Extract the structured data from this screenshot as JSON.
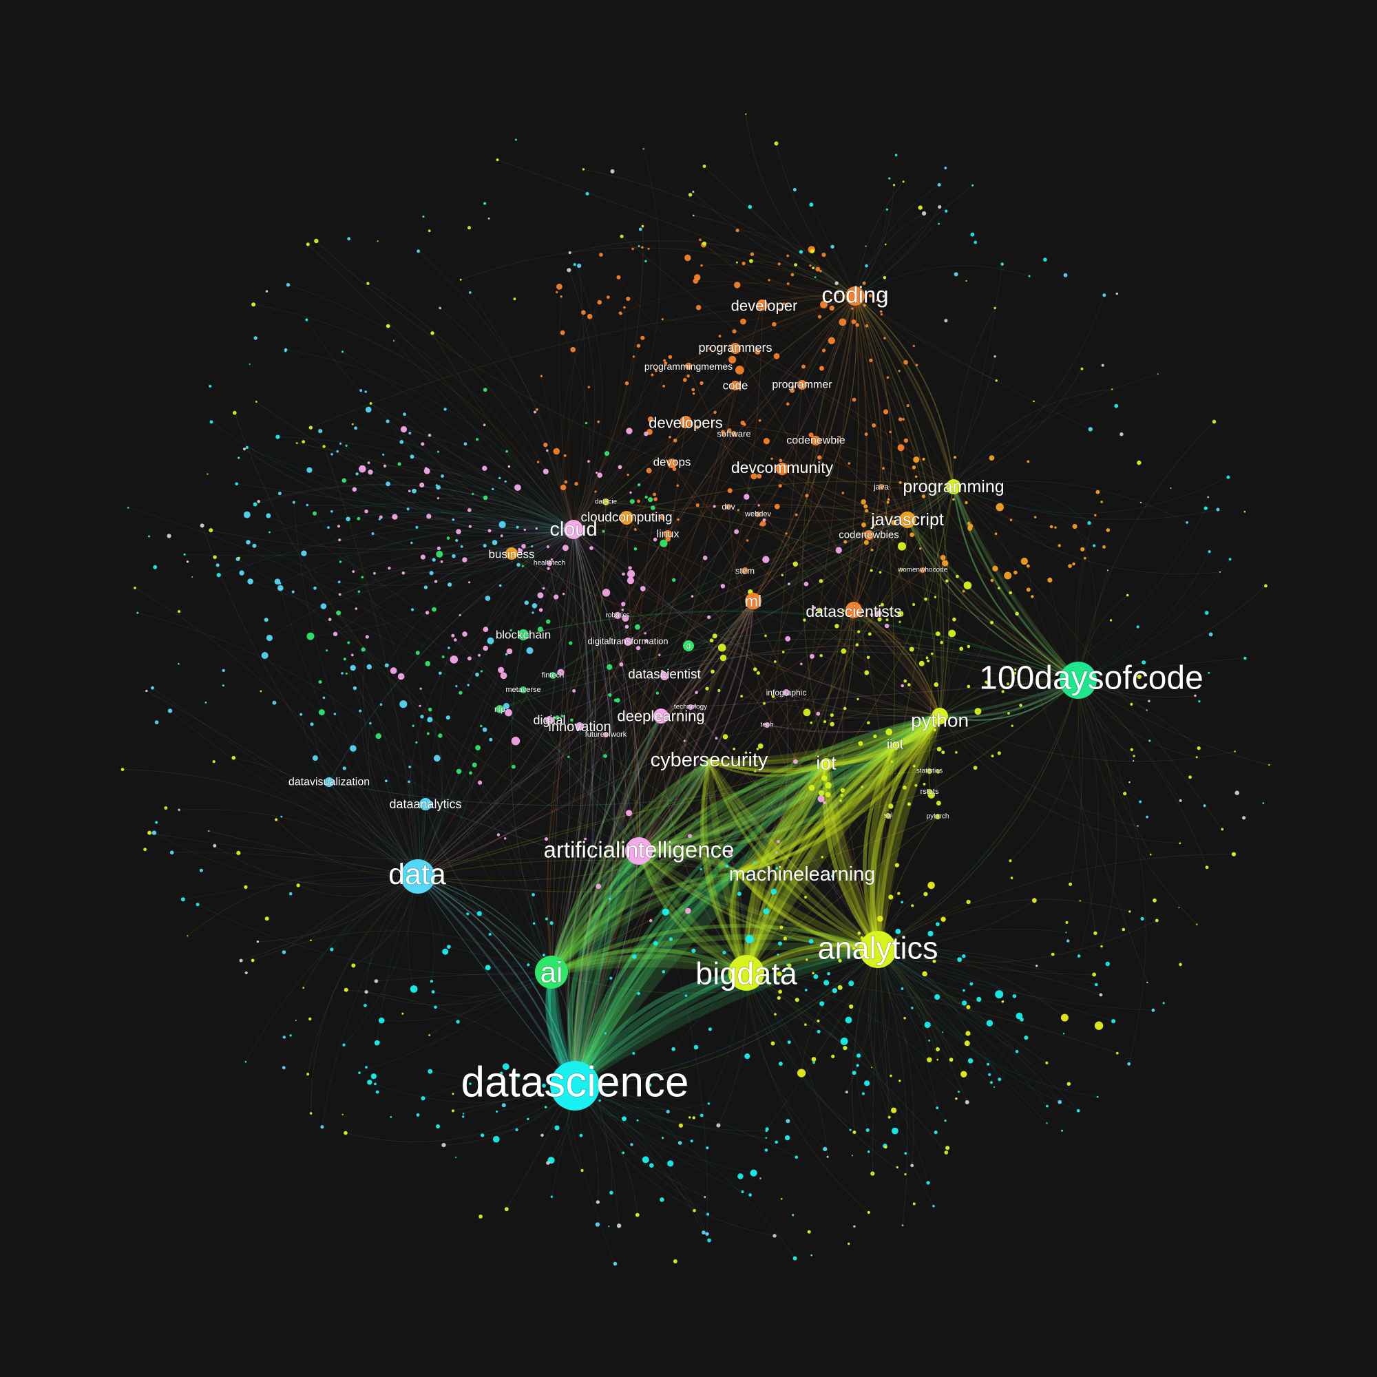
{
  "palette": {
    "background": "#141414",
    "cyan": "#19f0f0",
    "sky": "#55d8f5",
    "green": "#1ee68c",
    "spring": "#2ee66a",
    "lime": "#d7f21e",
    "yellow": "#e6f01a",
    "orange": "#f5822a",
    "amber": "#f5a020",
    "pink": "#f5a8ea",
    "grey": "#cfcfcf"
  },
  "hubs": [
    {
      "label": "datascience",
      "color": "cyan",
      "tier": "xl"
    },
    {
      "label": "100daysofcode",
      "color": "green",
      "tier": "l"
    },
    {
      "label": "analytics",
      "color": "lime",
      "tier": "l"
    },
    {
      "label": "bigdata",
      "color": "lime",
      "tier": "l"
    },
    {
      "label": "ai",
      "color": "spring",
      "tier": "l"
    },
    {
      "label": "data",
      "color": "sky",
      "tier": "l"
    },
    {
      "label": "artificialintelligence",
      "color": "pink",
      "tier": "m"
    },
    {
      "label": "machinelearning",
      "color": "lime",
      "tier": "m"
    },
    {
      "label": "coding",
      "color": "orange",
      "tier": "m"
    },
    {
      "label": "python",
      "color": "lime",
      "tier": "m"
    },
    {
      "label": "cybersecurity",
      "color": "lime",
      "tier": "m"
    },
    {
      "label": "iot",
      "color": "lime",
      "tier": "m"
    },
    {
      "label": "programming",
      "color": "lime",
      "tier": "m"
    },
    {
      "label": "javascript",
      "color": "amber",
      "tier": "m"
    },
    {
      "label": "cloud",
      "color": "pink",
      "tier": "m"
    },
    {
      "label": "datascientists",
      "color": "orange",
      "tier": "s"
    },
    {
      "label": "devcommunity",
      "color": "orange",
      "tier": "s"
    },
    {
      "label": "developer",
      "color": "orange",
      "tier": "s"
    },
    {
      "label": "developers",
      "color": "orange",
      "tier": "s"
    },
    {
      "label": "ml",
      "color": "orange",
      "tier": "s"
    },
    {
      "label": "deeplearning",
      "color": "pink",
      "tier": "s"
    },
    {
      "label": "datascientist",
      "color": "pink",
      "tier": "s"
    },
    {
      "label": "innovation",
      "color": "pink",
      "tier": "s"
    },
    {
      "label": "digital",
      "color": "pink",
      "tier": "s"
    },
    {
      "label": "cloudcomputing",
      "color": "amber",
      "tier": "s"
    },
    {
      "label": "business",
      "color": "amber",
      "tier": "s"
    },
    {
      "label": "blockchain",
      "color": "spring",
      "tier": "s"
    },
    {
      "label": "dataanalytics",
      "color": "sky",
      "tier": "s"
    },
    {
      "label": "datavisualization",
      "color": "sky",
      "tier": "s"
    },
    {
      "label": "iiot",
      "color": "lime",
      "tier": "s"
    },
    {
      "label": "programmers",
      "color": "orange",
      "tier": "s"
    },
    {
      "label": "programmer",
      "color": "orange",
      "tier": "s"
    },
    {
      "label": "code",
      "color": "orange",
      "tier": "s"
    },
    {
      "label": "codenewbie",
      "color": "orange",
      "tier": "s"
    },
    {
      "label": "codenewbies",
      "color": "orange",
      "tier": "s"
    },
    {
      "label": "devops",
      "color": "orange",
      "tier": "s"
    },
    {
      "label": "linux",
      "color": "orange",
      "tier": "s"
    },
    {
      "label": "programmingmemes",
      "color": "orange",
      "tier": "xs"
    },
    {
      "label": "software",
      "color": "orange",
      "tier": "xs"
    },
    {
      "label": "digitaltransformation",
      "color": "pink",
      "tier": "xs"
    },
    {
      "label": "stem",
      "color": "orange",
      "tier": "xs"
    },
    {
      "label": "java",
      "color": "orange",
      "tier": "xs"
    },
    {
      "label": "dev",
      "color": "orange",
      "tier": "xs"
    },
    {
      "label": "webdev",
      "color": "orange",
      "tier": "xs"
    },
    {
      "label": "womenwhocode",
      "color": "orange",
      "tier": "xs"
    },
    {
      "label": "datacie",
      "color": "yellow",
      "tier": "xs"
    },
    {
      "label": "healthtech",
      "color": "pink",
      "tier": "xs"
    },
    {
      "label": "robotics",
      "color": "pink",
      "tier": "xs"
    },
    {
      "label": "fintech",
      "color": "spring",
      "tier": "xs"
    },
    {
      "label": "metaverse",
      "color": "spring",
      "tier": "xs"
    },
    {
      "label": "nlp",
      "color": "spring",
      "tier": "xs"
    },
    {
      "label": "infographic",
      "color": "pink",
      "tier": "xs"
    },
    {
      "label": "technology",
      "color": "pink",
      "tier": "xs"
    },
    {
      "label": "tech",
      "color": "pink",
      "tier": "xs"
    },
    {
      "label": "futureofwork",
      "color": "pink",
      "tier": "xs"
    },
    {
      "label": "statistics",
      "color": "lime",
      "tier": "xs"
    },
    {
      "label": "rstats",
      "color": "lime",
      "tier": "xs"
    },
    {
      "label": "sql",
      "color": "lime",
      "tier": "xs"
    },
    {
      "label": "pytorch",
      "color": "lime",
      "tier": "xs"
    },
    {
      "label": "d",
      "color": "spring",
      "tier": "xs"
    }
  ]
}
